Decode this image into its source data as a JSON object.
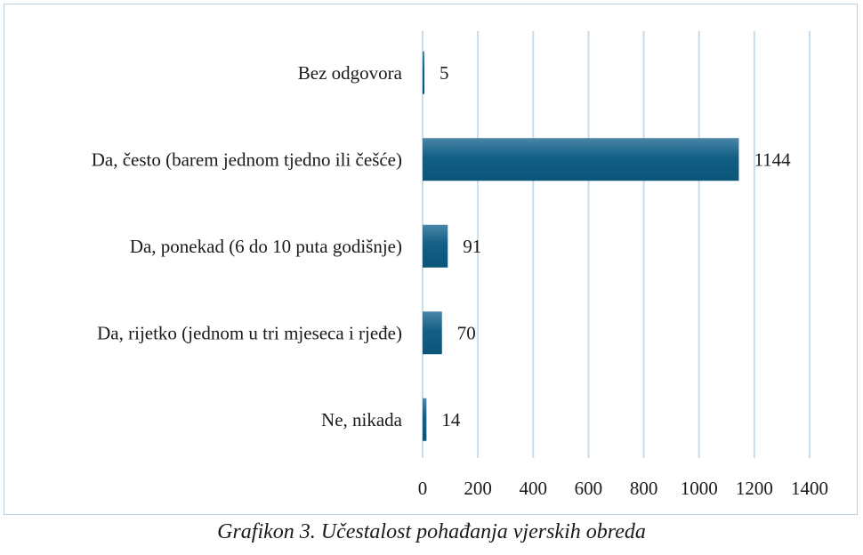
{
  "chart_data": {
    "type": "bar",
    "orientation": "horizontal",
    "categories": [
      "Bez odgovora",
      "Da, često (barem jednom tjedno ili češće)",
      "Da, ponekad (6 do 10 puta godišnje)",
      "Da, rijetko (jednom u tri mjeseca i rjeđe)",
      "Ne, nikada"
    ],
    "values": [
      5,
      1144,
      91,
      70,
      14
    ],
    "xlim": [
      0,
      1400
    ],
    "xticks": [
      0,
      200,
      400,
      600,
      800,
      1000,
      1200,
      1400
    ],
    "grid": "vertical",
    "bar_color": "#0f5a80",
    "bar_color_light": "#3a7fa3",
    "grid_color": "#c9dceb",
    "title": "",
    "xlabel": "",
    "ylabel": ""
  },
  "caption": "Grafikon 3. Učestalost pohađanja vjerskih obreda"
}
